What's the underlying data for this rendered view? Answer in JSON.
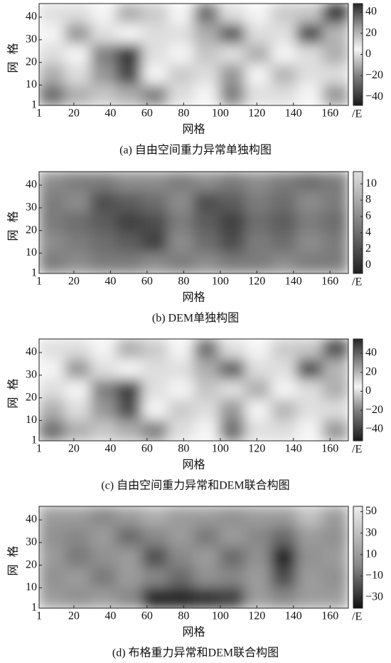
{
  "chart_data": [
    {
      "type": "heatmap",
      "caption": "(a) 自由空间重力异常单独构图",
      "xlabel": "网格",
      "ylabel": "网格",
      "colorbar_label": "/E",
      "xlim": [
        1,
        170
      ],
      "xticks": [
        1,
        20,
        40,
        60,
        80,
        100,
        120,
        140,
        160
      ],
      "ylim": [
        1,
        46
      ],
      "yticks": [
        1,
        10,
        20,
        30,
        40
      ],
      "clim": [
        -48,
        48
      ],
      "cticks": [
        40,
        20,
        0,
        {
          "value": -20,
          "label": "−20"
        },
        {
          "value": -40,
          "label": "−40"
        }
      ],
      "colormap": [
        {
          "value": -48,
          "color": "#1a1a1a"
        },
        {
          "value": -20,
          "color": "#808080"
        },
        {
          "value": 5,
          "color": "#f4f4f4"
        },
        {
          "value": 25,
          "color": "#a0a0a0"
        },
        {
          "value": 48,
          "color": "#262626"
        }
      ],
      "z": [
        [
          10,
          0,
          5,
          -10,
          15,
          5,
          -25,
          10,
          5,
          15,
          -5,
          45
        ],
        [
          5,
          -15,
          10,
          5,
          0,
          10,
          -10,
          -30,
          0,
          10,
          -35,
          20
        ],
        [
          0,
          5,
          -20,
          -40,
          10,
          5,
          -5,
          10,
          -10,
          5,
          0,
          -10
        ],
        [
          -10,
          0,
          -15,
          -35,
          5,
          15,
          0,
          -15,
          5,
          20,
          10,
          0
        ],
        [
          -25,
          -10,
          -5,
          -10,
          -20,
          0,
          5,
          -20,
          10,
          0,
          5,
          -15
        ]
      ]
    },
    {
      "type": "heatmap",
      "caption": "(b) DEM单独构图",
      "xlabel": "网格",
      "ylabel": "网格",
      "colorbar_label": "/E",
      "xlim": [
        1,
        170
      ],
      "xticks": [
        1,
        20,
        40,
        60,
        80,
        100,
        120,
        140,
        160
      ],
      "ylim": [
        1,
        46
      ],
      "yticks": [
        1,
        10,
        20,
        30,
        40
      ],
      "clim": [
        -1,
        11.5
      ],
      "cticks": [
        10,
        8,
        6,
        4,
        2,
        0
      ],
      "colormap": [
        {
          "value": -1,
          "color": "#202020"
        },
        {
          "value": 11.5,
          "color": "#e0e0e0"
        }
      ],
      "z": [
        [
          6,
          5,
          5,
          6,
          6,
          5,
          6,
          5,
          6,
          5,
          4,
          5
        ],
        [
          5,
          6,
          2,
          3,
          4,
          6,
          2,
          3,
          5,
          4,
          6,
          5
        ],
        [
          5,
          4,
          3,
          1,
          2,
          5,
          3,
          1,
          4,
          3,
          5,
          4
        ],
        [
          6,
          5,
          4,
          3,
          1,
          6,
          4,
          2,
          5,
          4,
          6,
          5
        ],
        [
          5,
          6,
          5,
          5,
          6,
          5,
          6,
          5,
          5,
          6,
          5,
          5
        ]
      ]
    },
    {
      "type": "heatmap",
      "caption": "(c) 自由空间重力异常和DEM联合构图",
      "xlabel": "网格",
      "ylabel": "网格",
      "colorbar_label": "/E",
      "xlim": [
        1,
        170
      ],
      "xticks": [
        1,
        20,
        40,
        60,
        80,
        100,
        120,
        140,
        160
      ],
      "ylim": [
        1,
        46
      ],
      "yticks": [
        1,
        10,
        20,
        30,
        40
      ],
      "clim": [
        -52,
        55
      ],
      "cticks": [
        40,
        20,
        0,
        {
          "value": -20,
          "label": "−20"
        },
        {
          "value": -40,
          "label": "−40"
        }
      ],
      "colormap": [
        {
          "value": -52,
          "color": "#1a1a1a"
        },
        {
          "value": -20,
          "color": "#808080"
        },
        {
          "value": 5,
          "color": "#f4f4f4"
        },
        {
          "value": 25,
          "color": "#a0a0a0"
        },
        {
          "value": 55,
          "color": "#262626"
        }
      ],
      "z": [
        [
          10,
          0,
          5,
          -10,
          15,
          5,
          -25,
          10,
          5,
          15,
          -5,
          45
        ],
        [
          5,
          -15,
          10,
          5,
          0,
          10,
          -10,
          -30,
          0,
          10,
          -35,
          20
        ],
        [
          0,
          5,
          -20,
          -40,
          10,
          5,
          -5,
          10,
          -10,
          5,
          0,
          -10
        ],
        [
          -10,
          0,
          -15,
          -35,
          5,
          15,
          0,
          -15,
          5,
          20,
          10,
          0
        ],
        [
          -25,
          -10,
          -5,
          -10,
          -20,
          0,
          5,
          -25,
          10,
          0,
          5,
          -15
        ]
      ]
    },
    {
      "type": "heatmap",
      "caption": "(d) 布格重力异常和DEM联合构图",
      "xlabel": "网格",
      "ylabel": "网格",
      "colorbar_label": "/E",
      "xlim": [
        1,
        170
      ],
      "xticks": [
        1,
        20,
        40,
        60,
        80,
        100,
        120,
        140,
        160
      ],
      "ylim": [
        1,
        46
      ],
      "yticks": [
        1,
        10,
        20,
        30,
        40
      ],
      "clim": [
        -40,
        55
      ],
      "cticks": [
        50,
        30,
        10,
        {
          "value": -10,
          "label": "−10"
        },
        {
          "value": -30,
          "label": "−30"
        }
      ],
      "colormap": [
        {
          "value": -40,
          "color": "#111111"
        },
        {
          "value": 0,
          "color": "#888888"
        },
        {
          "value": 55,
          "color": "#eeeeee"
        }
      ],
      "z": [
        [
          10,
          10,
          0,
          10,
          20,
          10,
          10,
          5,
          10,
          10,
          30,
          10
        ],
        [
          5,
          0,
          10,
          -10,
          0,
          10,
          -5,
          10,
          0,
          -10,
          10,
          5
        ],
        [
          10,
          -5,
          5,
          10,
          -20,
          0,
          10,
          -10,
          5,
          -35,
          5,
          10
        ],
        [
          5,
          10,
          -5,
          10,
          0,
          -10,
          5,
          0,
          10,
          -20,
          10,
          5
        ],
        [
          10,
          5,
          10,
          0,
          -35,
          -35,
          -30,
          -25,
          10,
          0,
          10,
          10
        ]
      ]
    }
  ]
}
